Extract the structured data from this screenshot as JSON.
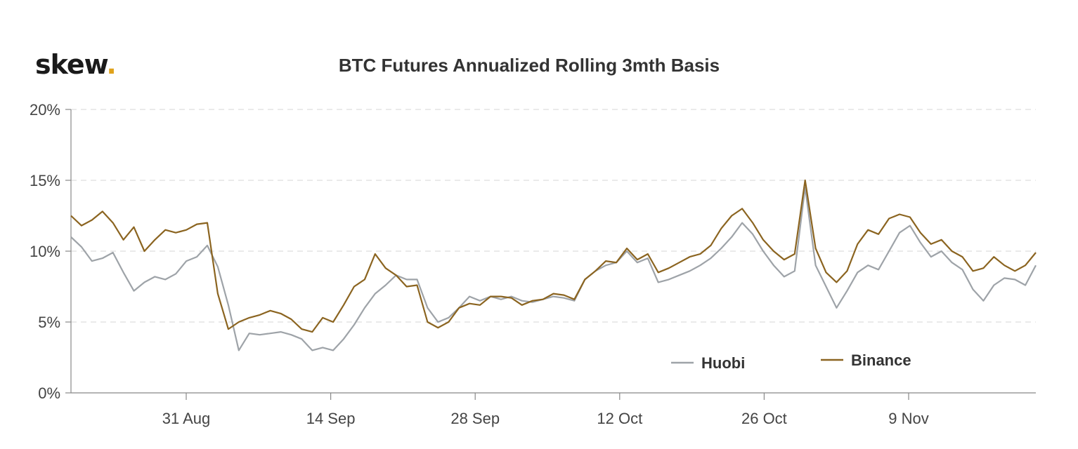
{
  "brand": {
    "logo_text": "skew",
    "logo_dot": "."
  },
  "chart_data": {
    "type": "line",
    "title": "BTC Futures Annualized Rolling 3mth Basis",
    "xlabel": "",
    "ylabel": "",
    "ylim": [
      0,
      20
    ],
    "y_ticks": [
      "0%",
      "5%",
      "10%",
      "15%",
      "20%"
    ],
    "x_ticks": [
      "31 Aug",
      "14 Sep",
      "28 Sep",
      "12 Oct",
      "26 Oct",
      "9 Nov"
    ],
    "grid": "horizontal dashed",
    "legend_position": "bottom-right",
    "series": [
      {
        "name": "Huobi",
        "color": "#9ea3a8",
        "x": [
          0,
          1,
          2,
          3,
          4,
          5,
          6,
          7,
          8,
          9,
          10,
          11,
          12,
          13,
          14,
          15,
          16,
          17,
          18,
          19,
          20,
          21,
          22,
          23,
          24,
          25,
          26,
          27,
          28,
          29,
          30,
          31,
          32,
          33,
          34,
          35,
          36,
          37,
          38,
          39,
          40,
          41,
          42,
          43,
          44,
          45,
          46,
          47,
          48,
          49,
          50,
          51,
          52,
          53,
          54,
          55,
          56,
          57,
          58,
          59,
          60,
          61,
          62,
          63,
          64,
          65,
          66,
          67,
          68,
          69,
          70,
          71,
          72,
          73,
          74,
          75,
          76,
          77,
          78,
          79,
          80,
          81,
          82,
          83,
          84,
          85,
          86,
          87,
          88,
          89,
          90,
          91,
          92
        ],
        "values": [
          11.0,
          10.3,
          9.3,
          9.5,
          9.9,
          8.5,
          7.2,
          7.8,
          8.2,
          8.0,
          8.4,
          9.3,
          9.6,
          10.4,
          8.9,
          6.2,
          3.0,
          4.2,
          4.1,
          4.2,
          4.3,
          4.1,
          3.8,
          3.0,
          3.2,
          3.0,
          3.8,
          4.8,
          6.0,
          7.0,
          7.6,
          8.3,
          8.0,
          8.0,
          6.0,
          5.0,
          5.3,
          6.0,
          6.8,
          6.5,
          6.8,
          6.6,
          6.8,
          6.5,
          6.4,
          6.6,
          6.8,
          6.7,
          6.5,
          8.0,
          8.6,
          9.0,
          9.2,
          10.0,
          9.2,
          9.5,
          7.8,
          8.0,
          8.3,
          8.6,
          9.0,
          9.5,
          10.2,
          11.0,
          12.0,
          11.2,
          10.0,
          9.0,
          8.2,
          8.6,
          14.5,
          9.0,
          7.5,
          6.0,
          7.2,
          8.5,
          9.0,
          8.7,
          10.0,
          11.3,
          11.8,
          10.6,
          9.6,
          10.0,
          9.2,
          8.7,
          7.3,
          6.5,
          7.6,
          8.1,
          8.0,
          7.6,
          9.0
        ]
      },
      {
        "name": "Binance",
        "color": "#8b6420",
        "x": [
          0,
          1,
          2,
          3,
          4,
          5,
          6,
          7,
          8,
          9,
          10,
          11,
          12,
          13,
          14,
          15,
          16,
          17,
          18,
          19,
          20,
          21,
          22,
          23,
          24,
          25,
          26,
          27,
          28,
          29,
          30,
          31,
          32,
          33,
          34,
          35,
          36,
          37,
          38,
          39,
          40,
          41,
          42,
          43,
          44,
          45,
          46,
          47,
          48,
          49,
          50,
          51,
          52,
          53,
          54,
          55,
          56,
          57,
          58,
          59,
          60,
          61,
          62,
          63,
          64,
          65,
          66,
          67,
          68,
          69,
          70,
          71,
          72,
          73,
          74,
          75,
          76,
          77,
          78,
          79,
          80,
          81,
          82,
          83,
          84,
          85,
          86,
          87,
          88,
          89,
          90,
          91,
          92
        ],
        "values": [
          12.5,
          11.8,
          12.2,
          12.8,
          12.0,
          10.8,
          11.7,
          10.0,
          10.8,
          11.5,
          11.3,
          11.5,
          11.9,
          12.0,
          7.0,
          4.5,
          5.0,
          5.3,
          5.5,
          5.8,
          5.6,
          5.2,
          4.5,
          4.3,
          5.3,
          5.0,
          6.2,
          7.5,
          8.0,
          9.8,
          8.8,
          8.3,
          7.5,
          7.6,
          5.0,
          4.6,
          5.0,
          6.0,
          6.3,
          6.2,
          6.8,
          6.8,
          6.7,
          6.2,
          6.5,
          6.6,
          7.0,
          6.9,
          6.6,
          8.0,
          8.6,
          9.3,
          9.2,
          10.2,
          9.4,
          9.8,
          8.5,
          8.8,
          9.2,
          9.6,
          9.8,
          10.4,
          11.6,
          12.5,
          13.0,
          12.0,
          10.8,
          10.0,
          9.4,
          9.8,
          15.0,
          10.2,
          8.5,
          7.8,
          8.6,
          10.5,
          11.5,
          11.2,
          12.3,
          12.6,
          12.4,
          11.3,
          10.5,
          10.8,
          10.0,
          9.6,
          8.6,
          8.8,
          9.6,
          9.0,
          8.6,
          9.0,
          9.9
        ]
      }
    ]
  }
}
